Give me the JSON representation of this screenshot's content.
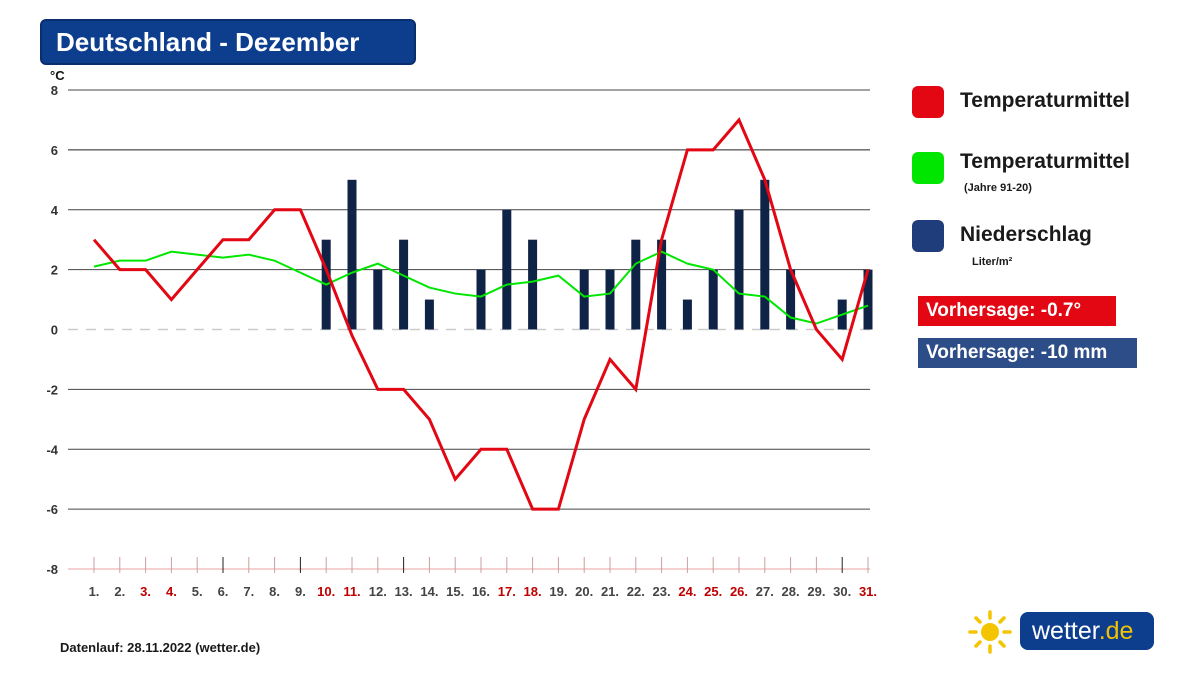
{
  "header": {
    "title": "Deutschland - Dezember"
  },
  "legend": {
    "items": [
      {
        "label": "Temperaturmittel",
        "sublabel": "",
        "color": "#e30613"
      },
      {
        "label": "Temperaturmittel",
        "sublabel": "(Jahre 91-20)",
        "color": "#00e600"
      },
      {
        "label": "Niederschlag",
        "sublabel": "Liter/m²",
        "color": "#1f3d7a"
      }
    ]
  },
  "forecast": {
    "temperature": "Vorhersage: -0.7°",
    "precipitation": "Vorhersage: -10 mm",
    "temperature_color": "#e30613",
    "precipitation_color": "#2d4d88"
  },
  "footer": {
    "datenlauf": "Datenlauf: 28.11.2022 (wetter.de)"
  },
  "logo": {
    "word": "wetter",
    "tld": ".de"
  },
  "chart_data": {
    "type": "line",
    "yunit": "°C",
    "ylim": [
      -8,
      8
    ],
    "yticks": [
      8,
      6,
      4,
      2,
      0,
      -2,
      -4,
      -6,
      -8
    ],
    "grid": true,
    "legend_position": "right",
    "categories": [
      "1.",
      "2.",
      "3.",
      "4.",
      "5.",
      "6.",
      "7.",
      "8.",
      "9.",
      "10.",
      "11.",
      "12.",
      "13.",
      "14.",
      "15.",
      "16.",
      "17.",
      "18.",
      "19.",
      "20.",
      "21.",
      "22.",
      "23.",
      "24.",
      "25.",
      "26.",
      "27.",
      "28.",
      "29.",
      "30.",
      "31."
    ],
    "highlighted_days": [
      "3.",
      "4.",
      "10.",
      "11.",
      "17.",
      "18.",
      "24.",
      "25.",
      "26.",
      "31."
    ],
    "series": [
      {
        "name": "Temperaturmittel",
        "kind": "line",
        "color": "#e30613",
        "values": [
          3,
          2,
          2,
          1,
          2,
          3,
          3,
          4,
          4,
          2,
          -0.2,
          -2,
          -2,
          -3,
          -5,
          -4,
          -4,
          -6,
          -6,
          -3,
          -1,
          -2,
          3,
          6,
          6,
          7,
          5,
          2,
          0,
          -1,
          2
        ]
      },
      {
        "name": "Temperaturmittel (Jahre 91-20)",
        "kind": "line",
        "color": "#00e600",
        "values": [
          2.1,
          2.3,
          2.3,
          2.6,
          2.5,
          2.4,
          2.5,
          2.3,
          1.9,
          1.5,
          1.9,
          2.2,
          1.8,
          1.4,
          1.2,
          1.1,
          1.5,
          1.6,
          1.8,
          1.1,
          1.2,
          2.2,
          2.6,
          2.2,
          2.0,
          1.2,
          1.1,
          0.4,
          0.2,
          0.5,
          0.8
        ]
      },
      {
        "name": "Niederschlag",
        "kind": "bar",
        "unit": "Liter/m²",
        "color": "#0f2347",
        "values": [
          0,
          0,
          0,
          0,
          0,
          0,
          0,
          0,
          0,
          3,
          5,
          2,
          3,
          1,
          0,
          2,
          4,
          3,
          0,
          2,
          2,
          3,
          3,
          1,
          2,
          4,
          5,
          2,
          0,
          1,
          2
        ]
      }
    ]
  }
}
